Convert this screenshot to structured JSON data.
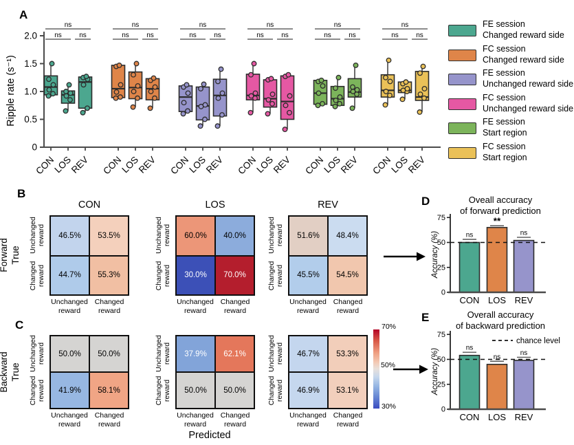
{
  "panel_labels": {
    "a": "A",
    "b": "B",
    "c": "C",
    "d": "D",
    "e": "E"
  },
  "chart_data": {
    "A_boxplot": {
      "type": "box",
      "ylabel": "Ripple rate (s⁻¹)",
      "ylim": [
        0,
        2.0
      ],
      "ytick_values": [
        0,
        0.5,
        1.0,
        1.5,
        2.0
      ],
      "ytick_labels": [
        "0",
        "0.5",
        "1.0",
        "1.5",
        "2.0"
      ],
      "categories": [
        "CON",
        "LOS",
        "REV"
      ],
      "sig": {
        "pair_left": "ns",
        "pair_right": "ns",
        "overall": "ns"
      },
      "series": [
        {
          "name": "FE session Changed reward side",
          "legend": [
            "FE session",
            "Changed reward side"
          ],
          "color": "#4CA78F",
          "boxes": [
            {
              "cat": "CON",
              "lo": 0.9,
              "q1": 0.94,
              "med": 1.08,
              "q3": 1.28,
              "hi": 1.5,
              "points": [
                0.92,
                0.96,
                1.03,
                1.12,
                1.22,
                1.5
              ]
            },
            {
              "cat": "LOS",
              "lo": 0.65,
              "q1": 0.79,
              "med": 0.94,
              "q3": 1.01,
              "hi": 1.12,
              "points": [
                0.65,
                0.85,
                0.92,
                0.97,
                1.0,
                1.12
              ]
            },
            {
              "cat": "REV",
              "lo": 0.62,
              "q1": 0.7,
              "med": 1.17,
              "q3": 1.26,
              "hi": 1.28,
              "points": [
                0.62,
                0.7,
                1.12,
                1.22,
                1.25,
                1.27
              ]
            }
          ]
        },
        {
          "name": "FC session Changed reward side",
          "legend": [
            "FC session",
            "Changed reward side"
          ],
          "color": "#DF8549",
          "boxes": [
            {
              "cat": "CON",
              "lo": 0.87,
              "q1": 0.89,
              "med": 1.05,
              "q3": 1.47,
              "hi": 1.48,
              "points": [
                0.88,
                0.9,
                0.99,
                1.12,
                1.45,
                1.47
              ]
            },
            {
              "cat": "LOS",
              "lo": 0.72,
              "q1": 0.87,
              "med": 1.07,
              "q3": 1.35,
              "hi": 1.51,
              "points": [
                0.72,
                0.88,
                1.0,
                1.1,
                1.3,
                1.5
              ]
            },
            {
              "cat": "REV",
              "lo": 0.7,
              "q1": 0.85,
              "med": 1.05,
              "q3": 1.23,
              "hi": 1.25,
              "points": [
                0.7,
                0.88,
                1.0,
                1.08,
                1.2,
                1.24
              ]
            }
          ]
        },
        {
          "name": "FE session Unchanged reward side",
          "legend": [
            "FE session",
            "Unchanged reward side"
          ],
          "color": "#9694CB",
          "boxes": [
            {
              "cat": "CON",
              "lo": 0.6,
              "q1": 0.64,
              "med": 0.9,
              "q3": 1.1,
              "hi": 1.13,
              "points": [
                0.6,
                0.65,
                0.8,
                0.97,
                1.08,
                1.12
              ]
            },
            {
              "cat": "LOS",
              "lo": 0.38,
              "q1": 0.49,
              "med": 0.74,
              "q3": 1.08,
              "hi": 1.14,
              "points": [
                0.38,
                0.5,
                0.73,
                0.76,
                1.05,
                1.13
              ]
            },
            {
              "cat": "REV",
              "lo": 0.38,
              "q1": 0.56,
              "med": 0.93,
              "q3": 1.22,
              "hi": 1.41,
              "points": [
                0.38,
                0.58,
                0.88,
                0.97,
                1.18,
                1.4
              ]
            }
          ]
        },
        {
          "name": "FC session Unchanged reward side",
          "legend": [
            "FC session",
            "Unchanged reward side"
          ],
          "color": "#E558A3",
          "boxes": [
            {
              "cat": "CON",
              "lo": 0.62,
              "q1": 0.85,
              "med": 0.93,
              "q3": 1.31,
              "hi": 1.5,
              "points": [
                0.62,
                0.88,
                0.92,
                0.97,
                1.3,
                1.5
              ]
            },
            {
              "cat": "LOS",
              "lo": 0.6,
              "q1": 0.72,
              "med": 0.87,
              "q3": 1.21,
              "hi": 1.24,
              "points": [
                0.6,
                0.78,
                0.85,
                0.95,
                1.21,
                1.23
              ]
            },
            {
              "cat": "REV",
              "lo": 0.32,
              "q1": 0.5,
              "med": 0.82,
              "q3": 1.28,
              "hi": 1.31,
              "points": [
                0.32,
                0.62,
                0.75,
                0.92,
                1.27,
                1.3
              ]
            }
          ]
        },
        {
          "name": "FE session Start region",
          "legend": [
            "FE session",
            "Start region"
          ],
          "color": "#7CB45B",
          "boxes": [
            {
              "cat": "CON",
              "lo": 0.75,
              "q1": 0.77,
              "med": 0.97,
              "q3": 1.2,
              "hi": 1.21,
              "points": [
                0.75,
                0.78,
                0.97,
                1.1,
                1.18,
                1.2
              ]
            },
            {
              "cat": "LOS",
              "lo": 0.73,
              "q1": 0.75,
              "med": 0.87,
              "q3": 1.09,
              "hi": 1.26,
              "points": [
                0.73,
                0.78,
                0.84,
                0.9,
                1.06,
                1.25
              ]
            },
            {
              "cat": "REV",
              "lo": 0.7,
              "q1": 0.9,
              "med": 0.99,
              "q3": 1.23,
              "hi": 1.48,
              "points": [
                0.7,
                0.95,
                1.0,
                1.03,
                1.08,
                1.47
              ]
            }
          ]
        },
        {
          "name": "FC session Start region",
          "legend": [
            "FC session",
            "Start region"
          ],
          "color": "#EAC158",
          "boxes": [
            {
              "cat": "CON",
              "lo": 0.76,
              "q1": 0.9,
              "med": 1.02,
              "q3": 1.3,
              "hi": 1.57,
              "points": [
                0.76,
                0.93,
                1.0,
                1.18,
                1.25,
                1.56
              ]
            },
            {
              "cat": "LOS",
              "lo": 0.86,
              "q1": 0.98,
              "med": 1.02,
              "q3": 1.17,
              "hi": 1.18,
              "points": [
                0.86,
                1.0,
                1.02,
                1.05,
                1.14,
                1.17
              ]
            },
            {
              "cat": "REV",
              "lo": 0.63,
              "q1": 0.84,
              "med": 0.9,
              "q3": 1.36,
              "hi": 1.46,
              "points": [
                0.63,
                0.88,
                0.95,
                1.05,
                1.33,
                1.45
              ]
            }
          ]
        }
      ]
    },
    "B_confusion_forward": {
      "type": "heatmap",
      "row_label": [
        "Forward",
        "True"
      ],
      "axis_rows": [
        [
          "Unchanged",
          "reward"
        ],
        [
          "Changed",
          "reward"
        ]
      ],
      "axis_cols": [
        [
          "Unchanged",
          "reward"
        ],
        [
          "Changed",
          "reward"
        ]
      ],
      "panels": [
        {
          "title": "CON",
          "values": [
            [
              "46.5%",
              "53.5%"
            ],
            [
              "44.7%",
              "55.3%"
            ]
          ],
          "bg": [
            [
              "#C2D4ED",
              "#F4D0BC"
            ],
            [
              "#AFCBEA",
              "#F1BFA3"
            ]
          ],
          "fg": [
            [
              "#000000",
              "#000000"
            ],
            [
              "#000000",
              "#000000"
            ]
          ]
        },
        {
          "title": "LOS",
          "values": [
            [
              "60.0%",
              "40.0%"
            ],
            [
              "30.0%",
              "70.0%"
            ]
          ],
          "bg": [
            [
              "#EC9678",
              "#8CACDC"
            ],
            [
              "#3C50B7",
              "#B41E2D"
            ]
          ],
          "fg": [
            [
              "#000000",
              "#000000"
            ],
            [
              "#ffffff",
              "#ffffff"
            ]
          ]
        },
        {
          "title": "REV",
          "values": [
            [
              "51.6%",
              "48.4%"
            ],
            [
              "45.5%",
              "54.5%"
            ]
          ],
          "bg": [
            [
              "#E2CFC4",
              "#CBDCF0"
            ],
            [
              "#B2CDEB",
              "#F1C7AE"
            ]
          ],
          "fg": [
            [
              "#000000",
              "#000000"
            ],
            [
              "#000000",
              "#000000"
            ]
          ]
        }
      ]
    },
    "C_confusion_backward": {
      "type": "heatmap",
      "row_label": [
        "Backward",
        "True"
      ],
      "xlabel": "Predicted",
      "axis_rows": [
        [
          "Unchanged",
          "reward"
        ],
        [
          "Changed",
          "reward"
        ]
      ],
      "axis_cols": [
        [
          "Unchanged",
          "reward"
        ],
        [
          "Changed",
          "reward"
        ]
      ],
      "panels": [
        {
          "title": "",
          "values": [
            [
              "50.0%",
              "50.0%"
            ],
            [
              "41.9%",
              "58.1%"
            ]
          ],
          "bg": [
            [
              "#D5D4D2",
              "#D5D4D2"
            ],
            [
              "#97B7E2",
              "#F0A585"
            ]
          ],
          "fg": [
            [
              "#000000",
              "#000000"
            ],
            [
              "#000000",
              "#000000"
            ]
          ]
        },
        {
          "title": "",
          "values": [
            [
              "37.9%",
              "62.1%"
            ],
            [
              "50.0%",
              "50.0%"
            ]
          ],
          "bg": [
            [
              "#82A4D9",
              "#E4775B"
            ],
            [
              "#D5D4D2",
              "#D5D4D2"
            ]
          ],
          "fg": [
            [
              "#ffffff",
              "#ffffff"
            ],
            [
              "#000000",
              "#000000"
            ]
          ]
        },
        {
          "title": "",
          "values": [
            [
              "46.7%",
              "53.3%"
            ],
            [
              "46.9%",
              "53.1%"
            ]
          ],
          "bg": [
            [
              "#C4D6EE",
              "#F2CEBA"
            ],
            [
              "#C5D7EE",
              "#F2CFBC"
            ]
          ],
          "fg": [
            [
              "#000000",
              "#000000"
            ],
            [
              "#000000",
              "#000000"
            ]
          ]
        }
      ]
    },
    "colorbar": {
      "top_label": "70%",
      "mid_label": "50%",
      "bottom_label": "30%",
      "stops": [
        "#B40426 0%",
        "#D85646 14%",
        "#F0A183 30%",
        "#F3CBB6 42%",
        "#E8E0DB 50%",
        "#C6D7EC 60%",
        "#94B5E3 72%",
        "#6484D3 86%",
        "#3B4CC0 100%"
      ]
    },
    "D_accuracy_forward": {
      "type": "bar",
      "title_lines": [
        "Oveall accuracy",
        "of forward prediction"
      ],
      "ylabel": "Accuracy (%)",
      "ylim": [
        0,
        75
      ],
      "yticks": [
        0,
        25,
        50,
        75
      ],
      "categories": [
        "CON",
        "LOS",
        "REV"
      ],
      "values": [
        50,
        65,
        52
      ],
      "colors": [
        "#4CA78F",
        "#DF8549",
        "#9694CB"
      ],
      "sig": [
        "ns",
        "**",
        "ns"
      ],
      "chance_line": 50
    },
    "E_accuracy_backward": {
      "type": "bar",
      "title_lines": [
        "Overall accuracy",
        "of backward prediction"
      ],
      "ylabel": "Accuracy (%)",
      "ylim": [
        0,
        75
      ],
      "yticks": [
        0,
        25,
        50,
        75
      ],
      "categories": [
        "CON",
        "LOS",
        "REV"
      ],
      "values": [
        54,
        45,
        49
      ],
      "colors": [
        "#4CA78F",
        "#DF8549",
        "#9694CB"
      ],
      "sig": [
        "ns",
        "ns",
        "ns"
      ],
      "chance_line": 50,
      "legend_label": "chance level"
    }
  }
}
